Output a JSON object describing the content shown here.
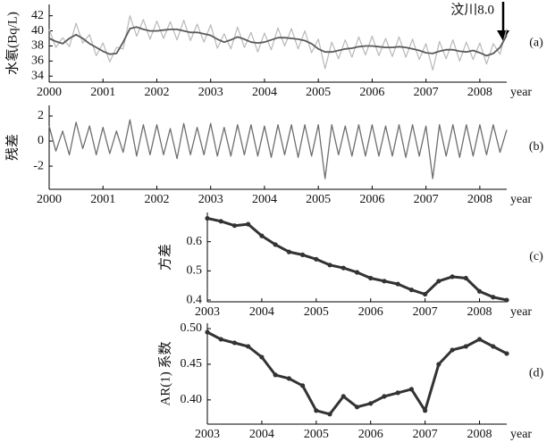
{
  "chart_data": [
    {
      "type": "line",
      "ylabel": "水氡(Bq/L)",
      "xlabel": "year",
      "panel_label": "(a)",
      "annotation": "汶川8.0",
      "x": [
        2000,
        2000.125,
        2000.25,
        2000.375,
        2000.5,
        2000.625,
        2000.75,
        2000.875,
        2001,
        2001.125,
        2001.25,
        2001.375,
        2001.5,
        2001.625,
        2001.75,
        2001.875,
        2002,
        2002.125,
        2002.25,
        2002.375,
        2002.5,
        2002.625,
        2002.75,
        2002.875,
        2003,
        2003.125,
        2003.25,
        2003.375,
        2003.5,
        2003.625,
        2003.75,
        2003.875,
        2004,
        2004.125,
        2004.25,
        2004.375,
        2004.5,
        2004.625,
        2004.75,
        2004.875,
        2005,
        2005.125,
        2005.25,
        2005.375,
        2005.5,
        2005.625,
        2005.75,
        2005.875,
        2006,
        2006.125,
        2006.25,
        2006.375,
        2006.5,
        2006.625,
        2006.75,
        2006.875,
        2007,
        2007.125,
        2007.25,
        2007.375,
        2007.5,
        2007.625,
        2007.75,
        2007.875,
        2008,
        2008.125,
        2008.25,
        2008.375,
        2008.5
      ],
      "series": [
        {
          "color": "#b8b8b8",
          "width": 1.2,
          "values": [
            40.2,
            37.8,
            39.1,
            37.9,
            41.0,
            38.4,
            39.5,
            36.7,
            38.4,
            35.9,
            37.8,
            37.6,
            42.0,
            39.3,
            41.5,
            38.9,
            41.3,
            39.0,
            41.2,
            38.8,
            41.4,
            38.7,
            40.9,
            38.5,
            40.8,
            37.7,
            39.6,
            37.6,
            40.5,
            37.8,
            39.8,
            37.2,
            39.7,
            37.5,
            40.4,
            38.0,
            40.3,
            37.6,
            40.0,
            37.1,
            38.9,
            35.0,
            38.5,
            36.3,
            38.8,
            36.5,
            39.2,
            36.8,
            39.3,
            36.7,
            39.0,
            36.6,
            39.2,
            36.5,
            38.9,
            36.2,
            38.3,
            34.8,
            38.6,
            36.3,
            38.8,
            36.0,
            38.5,
            36.2,
            38.4,
            35.6,
            38.3,
            36.9,
            40.3
          ]
        },
        {
          "color": "#5a5a5a",
          "width": 1.8,
          "values": [
            39.0,
            38.6,
            38.3,
            39.0,
            39.5,
            39.0,
            38.3,
            37.8,
            37.3,
            36.9,
            37.0,
            38.5,
            40.3,
            40.5,
            40.2,
            40.0,
            40.0,
            40.1,
            40.2,
            40.2,
            40.0,
            39.8,
            39.8,
            39.6,
            39.4,
            38.9,
            38.5,
            38.8,
            39.2,
            38.9,
            38.5,
            38.4,
            38.5,
            38.8,
            39.1,
            39.1,
            39.0,
            38.9,
            38.7,
            38.3,
            37.6,
            37.2,
            37.2,
            37.4,
            37.6,
            37.7,
            37.9,
            38.0,
            38.0,
            37.9,
            37.8,
            37.8,
            37.9,
            37.8,
            37.6,
            37.4,
            37.1,
            37.0,
            37.3,
            37.5,
            37.5,
            37.3,
            37.2,
            37.4,
            37.1,
            36.7,
            37.0,
            37.8,
            39.4
          ]
        }
      ],
      "xlim": [
        2000,
        2008.5
      ],
      "xticks": [
        2000,
        2001,
        2002,
        2003,
        2004,
        2005,
        2006,
        2007,
        2008
      ],
      "ylim": [
        33.2,
        43.5
      ],
      "yticks": [
        34,
        36,
        38,
        40,
        42
      ]
    },
    {
      "type": "line",
      "ylabel": "残差",
      "xlabel": "year",
      "panel_label": "(b)",
      "x": [
        2000,
        2000.125,
        2000.25,
        2000.375,
        2000.5,
        2000.625,
        2000.75,
        2000.875,
        2001,
        2001.125,
        2001.25,
        2001.375,
        2001.5,
        2001.625,
        2001.75,
        2001.875,
        2002,
        2002.125,
        2002.25,
        2002.375,
        2002.5,
        2002.625,
        2002.75,
        2002.875,
        2003,
        2003.125,
        2003.25,
        2003.375,
        2003.5,
        2003.625,
        2003.75,
        2003.875,
        2004,
        2004.125,
        2004.25,
        2004.375,
        2004.5,
        2004.625,
        2004.75,
        2004.875,
        2005,
        2005.125,
        2005.25,
        2005.375,
        2005.5,
        2005.625,
        2005.75,
        2005.875,
        2006,
        2006.125,
        2006.25,
        2006.375,
        2006.5,
        2006.625,
        2006.75,
        2006.875,
        2007,
        2007.125,
        2007.25,
        2007.375,
        2007.5,
        2007.625,
        2007.75,
        2007.875,
        2008,
        2008.125,
        2008.25,
        2008.375,
        2008.5
      ],
      "series": [
        {
          "color": "#6e6e6e",
          "width": 1.3,
          "values": [
            1.2,
            -0.8,
            0.8,
            -1.1,
            1.5,
            -0.6,
            1.2,
            -1.1,
            1.1,
            -1.0,
            0.8,
            -0.9,
            1.7,
            -1.2,
            1.3,
            -1.1,
            1.3,
            -1.1,
            1.0,
            -1.4,
            1.4,
            -1.1,
            1.1,
            -1.1,
            1.4,
            -1.2,
            1.1,
            -1.2,
            1.3,
            -1.1,
            1.3,
            -1.2,
            1.2,
            -1.3,
            1.3,
            -1.1,
            1.3,
            -1.3,
            1.3,
            -1.2,
            1.3,
            -3.0,
            1.3,
            -1.1,
            1.2,
            -1.2,
            1.3,
            -1.2,
            1.3,
            -1.2,
            1.2,
            -1.2,
            1.3,
            -1.3,
            1.3,
            -1.2,
            1.2,
            -3.0,
            1.3,
            -1.2,
            1.3,
            -1.3,
            1.3,
            -1.2,
            1.3,
            -1.1,
            1.3,
            -0.9,
            0.9
          ]
        }
      ],
      "xlim": [
        2000,
        2008.5
      ],
      "xticks": [
        2000,
        2001,
        2002,
        2003,
        2004,
        2005,
        2006,
        2007,
        2008
      ],
      "ylim": [
        -3.85,
        2.85
      ],
      "yticks": [
        -2,
        0,
        2
      ]
    },
    {
      "type": "line",
      "markers": true,
      "ylabel": "方差",
      "xlabel": "year",
      "panel_label": "(c)",
      "x": [
        2003,
        2003.25,
        2003.5,
        2003.75,
        2004,
        2004.25,
        2004.5,
        2004.75,
        2005,
        2005.25,
        2005.5,
        2005.75,
        2006,
        2006.25,
        2006.5,
        2006.75,
        2007,
        2007.25,
        2007.5,
        2007.75,
        2008,
        2008.25,
        2008.5
      ],
      "series": [
        {
          "color": "#333333",
          "width": 3,
          "values": [
            0.68,
            0.67,
            0.655,
            0.66,
            0.62,
            0.59,
            0.565,
            0.555,
            0.54,
            0.52,
            0.51,
            0.495,
            0.475,
            0.465,
            0.455,
            0.435,
            0.42,
            0.465,
            0.48,
            0.475,
            0.43,
            0.41,
            0.4
          ]
        }
      ],
      "xlim": [
        2003,
        2008.5
      ],
      "xticks": [
        2003,
        2004,
        2005,
        2006,
        2007,
        2008
      ],
      "ylim": [
        0.394,
        0.7
      ],
      "yticks": [
        0.4,
        0.5,
        0.6
      ]
    },
    {
      "type": "line",
      "markers": true,
      "ylabel": "AR(1) 系数",
      "xlabel": "year",
      "panel_label": "(d)",
      "x": [
        2003,
        2003.25,
        2003.5,
        2003.75,
        2004,
        2004.25,
        2004.5,
        2004.75,
        2005,
        2005.25,
        2005.5,
        2005.75,
        2006,
        2006.25,
        2006.5,
        2006.75,
        2007,
        2007.25,
        2007.5,
        2007.75,
        2008,
        2008.25,
        2008.5
      ],
      "series": [
        {
          "color": "#333333",
          "width": 3,
          "values": [
            0.495,
            0.485,
            0.48,
            0.475,
            0.46,
            0.435,
            0.43,
            0.42,
            0.385,
            0.38,
            0.405,
            0.39,
            0.395,
            0.405,
            0.41,
            0.415,
            0.385,
            0.45,
            0.47,
            0.475,
            0.485,
            0.475,
            0.465
          ]
        }
      ],
      "xlim": [
        2003,
        2008.5
      ],
      "xticks": [
        2003,
        2004,
        2005,
        2006,
        2007,
        2008
      ],
      "ylim": [
        0.366,
        0.5075
      ],
      "yticks": [
        {
          "value": 0.4,
          "label": "0.40"
        },
        {
          "value": 0.45,
          "label": "0.45"
        },
        {
          "value": 0.5,
          "label": "0.50"
        }
      ]
    }
  ]
}
